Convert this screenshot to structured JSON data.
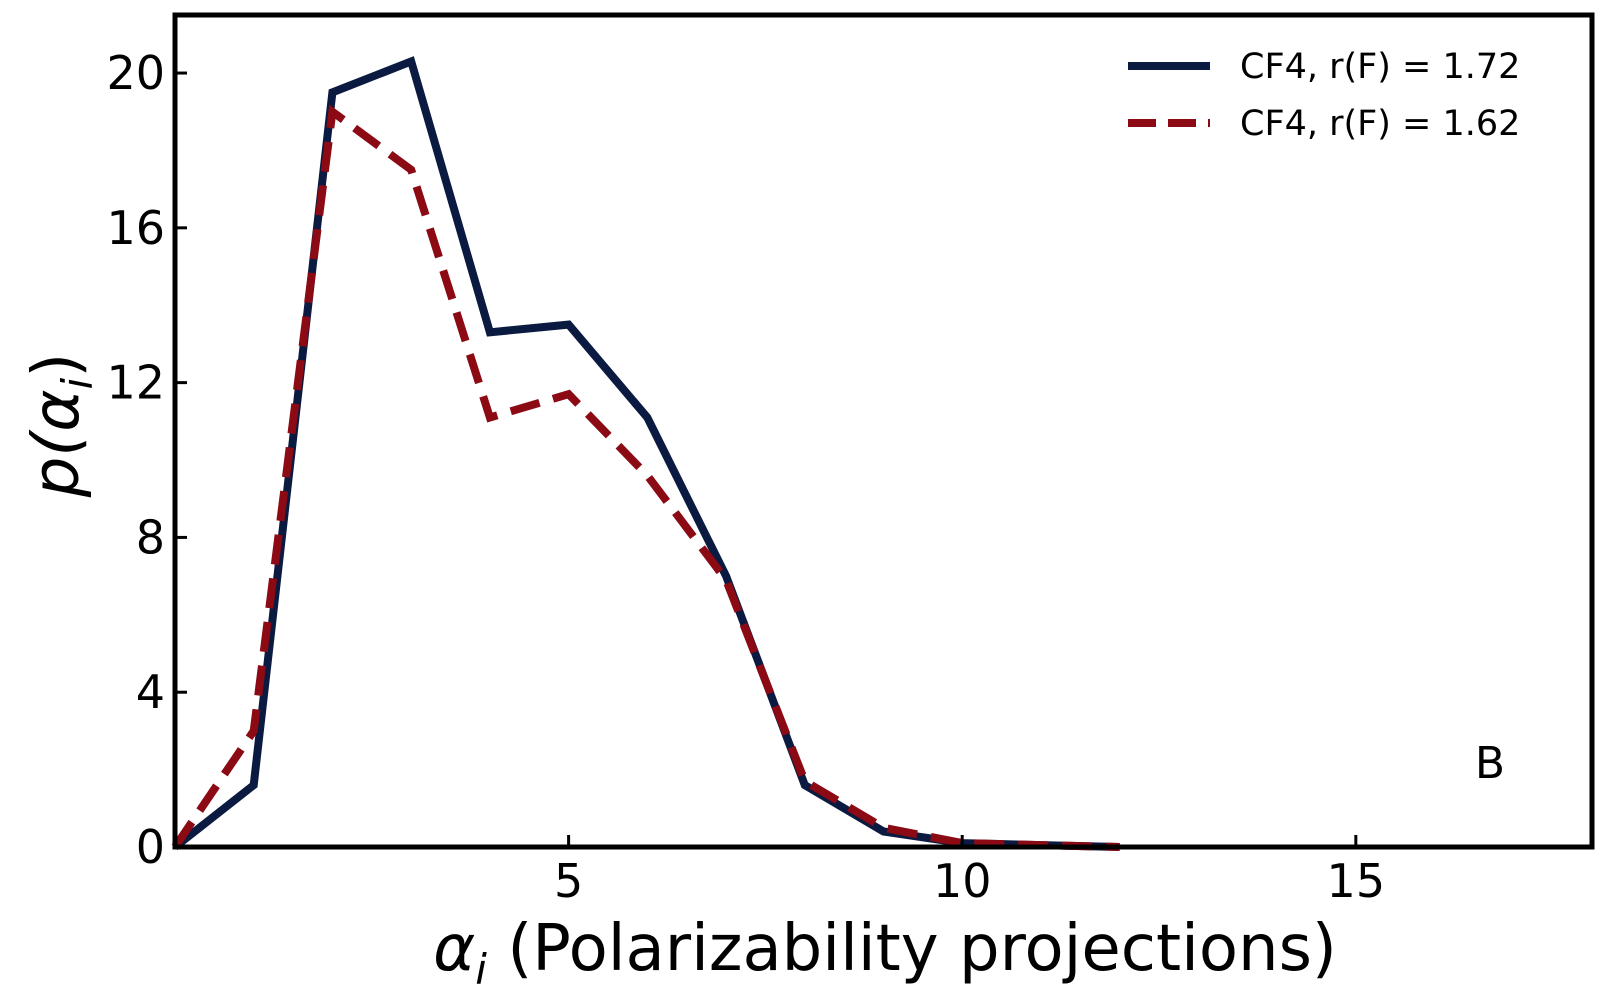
{
  "chart_data": {
    "type": "line",
    "title": "",
    "xlabel_symbol": "α",
    "xlabel_subscript": "i",
    "xlabel_text": " (Polarizability projections)",
    "ylabel_prefix": "p(",
    "ylabel_symbol": "α",
    "ylabel_subscript": "i",
    "ylabel_suffix": ")",
    "xlim": [
      0,
      18
    ],
    "ylim": [
      0,
      21.5
    ],
    "xticks": [
      5,
      10,
      15
    ],
    "yticks": [
      0,
      4,
      8,
      12,
      16,
      20
    ],
    "grid": false,
    "legend_position": "top-right",
    "panel_label": "B",
    "x": [
      0,
      1,
      2,
      3,
      4,
      5,
      6,
      7,
      8,
      9,
      10,
      11,
      12
    ],
    "series": [
      {
        "name": "CF4, r(F) = 1.72",
        "color": "#0b1a40",
        "style": "solid",
        "values": [
          0,
          1.6,
          19.5,
          20.3,
          13.3,
          13.5,
          11.1,
          7.0,
          1.6,
          0.4,
          0.1,
          0.05,
          0.0
        ]
      },
      {
        "name": "CF4, r(F) = 1.62",
        "color": "#8b0a14",
        "style": "dashed",
        "values": [
          0,
          3.0,
          19.0,
          17.5,
          11.1,
          11.7,
          9.6,
          6.9,
          1.7,
          0.5,
          0.1,
          0.05,
          0.0
        ]
      }
    ]
  }
}
